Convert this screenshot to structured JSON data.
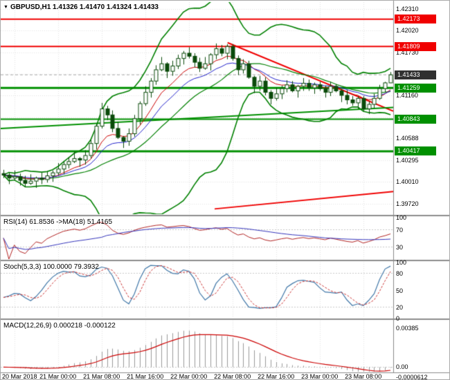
{
  "header": {
    "dropdown_icon": "▼",
    "symbol_line": "GBPUSD,H1 1.41326 1.41470 1.41324 1.41433"
  },
  "colors": {
    "background": "#ffffff",
    "grid": "#e4e4e4",
    "level": "#c8c8c8",
    "separator": "#8c8c8c",
    "axis_line": "#888888",
    "candle": "#0a4a0a",
    "bull": "#ffffff",
    "bollinger": "#008000",
    "badge_dark": "#303030",
    "rsi_line": "#b22222",
    "rsi_ma": "#3333bb",
    "stoch_k": "#4077a8",
    "stoch_d": "#cc3333",
    "macd_hist": "#999999",
    "macd_signal": "#cc0000",
    "bid_line": "#aaaaaa"
  },
  "chart_data": {
    "type": "candlestick",
    "symbol": "GBPUSD",
    "timeframe": "H1",
    "current_bar": {
      "open": 1.41326,
      "high": 1.4147,
      "low": 1.41324,
      "close": 1.41433
    },
    "x_labels": [
      {
        "text": "20 Mar 2018",
        "i": 2
      },
      {
        "text": "21 Mar 00:00",
        "i": 10
      },
      {
        "text": "21 Mar 08:00",
        "i": 18
      },
      {
        "text": "21 Mar 16:00",
        "i": 26
      },
      {
        "text": "22 Mar 00:00",
        "i": 34
      },
      {
        "text": "22 Mar 08:00",
        "i": 42
      },
      {
        "text": "22 Mar 16:00",
        "i": 50
      },
      {
        "text": "23 Mar 00:00",
        "i": 58
      },
      {
        "text": "23 Mar 08:00",
        "i": 66
      }
    ],
    "main": {
      "price_min": 1.3958,
      "price_max": 1.424,
      "axis_ticks": [
        1.4231,
        1.4202,
        1.4173,
        1.41445,
        1.4116,
        1.4087,
        1.40588,
        1.40295,
        1.4001,
        1.3972
      ],
      "hlines": [
        {
          "price": 1.42173,
          "label": "1.42173",
          "color": "#f00000",
          "width": 2
        },
        {
          "price": 1.41809,
          "label": "1.41809",
          "color": "#f00000",
          "width": 2
        },
        {
          "price": 1.41259,
          "label": "1.41259",
          "color": "#009000",
          "width": 3
        },
        {
          "price": 1.40843,
          "label": "1.40843",
          "color": "#009000",
          "width": 2
        },
        {
          "price": 1.40417,
          "label": "1.40417",
          "color": "#009000",
          "width": 3
        }
      ],
      "current_price": {
        "price": 1.41433,
        "label": "1.41433"
      },
      "trendlines": [
        {
          "x1": 0.578,
          "p1": 1.4186,
          "x2": 1.0,
          "p2": 1.4095,
          "color": "#f00000",
          "width": 2
        },
        {
          "x1": 0.0,
          "p1": 1.4072,
          "x2": 1.0,
          "p2": 1.41,
          "color": "#009000",
          "width": 2
        },
        {
          "x1": 0.545,
          "p1": 1.3965,
          "x2": 1.0,
          "p2": 1.3988,
          "color": "#f00000",
          "width": 2
        }
      ],
      "bollinger": {
        "period": 20,
        "deviation": 2.8
      },
      "ma": [
        {
          "period": 8,
          "color": "#cc0000"
        },
        {
          "period": 13,
          "color": "#2222cc"
        }
      ],
      "candles": [
        [
          1.4012,
          1.4017,
          1.4006,
          1.401
        ],
        [
          1.401,
          1.4013,
          1.3998,
          1.4006
        ],
        [
          1.4006,
          1.4016,
          1.4003,
          1.4008
        ],
        [
          1.4008,
          1.4012,
          1.3996,
          1.4003
        ],
        [
          1.4003,
          1.4009,
          1.3994,
          1.3999
        ],
        [
          1.3999,
          1.4011,
          1.3997,
          1.4002
        ],
        [
          1.4002,
          1.4008,
          1.3993,
          1.4006
        ],
        [
          1.4006,
          1.4013,
          1.3998,
          1.4004
        ],
        [
          1.4004,
          1.4014,
          1.4,
          1.4009
        ],
        [
          1.4009,
          1.4016,
          1.4001,
          1.4013
        ],
        [
          1.4013,
          1.4026,
          1.401,
          1.4018
        ],
        [
          1.4018,
          1.4028,
          1.4011,
          1.4024
        ],
        [
          1.4024,
          1.4034,
          1.4019,
          1.4028
        ],
        [
          1.4028,
          1.4041,
          1.4026,
          1.4032
        ],
        [
          1.4032,
          1.4034,
          1.4021,
          1.403
        ],
        [
          1.403,
          1.4043,
          1.4024,
          1.4036
        ],
        [
          1.4036,
          1.4057,
          1.4032,
          1.4052
        ],
        [
          1.4052,
          1.4078,
          1.4044,
          1.4075
        ],
        [
          1.4075,
          1.4106,
          1.4072,
          1.4098
        ],
        [
          1.4098,
          1.4102,
          1.4083,
          1.409
        ],
        [
          1.409,
          1.4096,
          1.4067,
          1.4072
        ],
        [
          1.4072,
          1.4081,
          1.4058,
          1.406
        ],
        [
          1.406,
          1.4062,
          1.4046,
          1.4055
        ],
        [
          1.4055,
          1.4072,
          1.4049,
          1.4065
        ],
        [
          1.4065,
          1.409,
          1.4061,
          1.4085
        ],
        [
          1.4085,
          1.4108,
          1.4077,
          1.4105
        ],
        [
          1.4105,
          1.4128,
          1.4102,
          1.412
        ],
        [
          1.412,
          1.4139,
          1.4113,
          1.4135
        ],
        [
          1.4135,
          1.4156,
          1.413,
          1.415
        ],
        [
          1.415,
          1.4167,
          1.4148,
          1.4158
        ],
        [
          1.4158,
          1.416,
          1.4139,
          1.4148
        ],
        [
          1.4148,
          1.4162,
          1.4142,
          1.4155
        ],
        [
          1.4155,
          1.417,
          1.4151,
          1.4165
        ],
        [
          1.4165,
          1.4175,
          1.4157,
          1.4172
        ],
        [
          1.4172,
          1.418,
          1.4165,
          1.4168
        ],
        [
          1.4168,
          1.4172,
          1.4153,
          1.416
        ],
        [
          1.416,
          1.4166,
          1.4147,
          1.4152
        ],
        [
          1.4152,
          1.4167,
          1.415,
          1.4158
        ],
        [
          1.4158,
          1.4172,
          1.4149,
          1.417
        ],
        [
          1.417,
          1.4185,
          1.4164,
          1.4178
        ],
        [
          1.4178,
          1.4183,
          1.4168,
          1.4172
        ],
        [
          1.4172,
          1.4184,
          1.4164,
          1.4181
        ],
        [
          1.4181,
          1.4184,
          1.4162,
          1.4165
        ],
        [
          1.4165,
          1.4169,
          1.4143,
          1.415
        ],
        [
          1.415,
          1.4164,
          1.4145,
          1.4158
        ],
        [
          1.4158,
          1.4162,
          1.4138,
          1.414
        ],
        [
          1.414,
          1.4142,
          1.4119,
          1.4128
        ],
        [
          1.4128,
          1.4142,
          1.4122,
          1.4135
        ],
        [
          1.4135,
          1.414,
          1.4116,
          1.412
        ],
        [
          1.412,
          1.4123,
          1.4104,
          1.4112
        ],
        [
          1.4112,
          1.4126,
          1.4109,
          1.4118
        ],
        [
          1.4118,
          1.4129,
          1.4111,
          1.4125
        ],
        [
          1.4125,
          1.4136,
          1.412,
          1.413
        ],
        [
          1.413,
          1.4135,
          1.412,
          1.4122
        ],
        [
          1.4122,
          1.413,
          1.4113,
          1.4128
        ],
        [
          1.4128,
          1.4139,
          1.4122,
          1.4132
        ],
        [
          1.4132,
          1.4137,
          1.4122,
          1.4126
        ],
        [
          1.4126,
          1.4133,
          1.4118,
          1.413
        ],
        [
          1.413,
          1.4134,
          1.4122,
          1.4125
        ],
        [
          1.4125,
          1.4129,
          1.4113,
          1.412
        ],
        [
          1.412,
          1.4134,
          1.4115,
          1.4128
        ],
        [
          1.4128,
          1.4131,
          1.412,
          1.4122
        ],
        [
          1.4122,
          1.4124,
          1.4107,
          1.4116
        ],
        [
          1.4116,
          1.4123,
          1.4104,
          1.411
        ],
        [
          1.411,
          1.4115,
          1.4102,
          1.4106
        ],
        [
          1.4106,
          1.4115,
          1.4098,
          1.4112
        ],
        [
          1.4112,
          1.4115,
          1.4095,
          1.4098
        ],
        [
          1.4098,
          1.4108,
          1.4091,
          1.4104
        ],
        [
          1.4104,
          1.4118,
          1.4099,
          1.4112
        ],
        [
          1.4112,
          1.413,
          1.411,
          1.4125
        ],
        [
          1.4125,
          1.4134,
          1.412,
          1.41326
        ],
        [
          1.41326,
          1.4147,
          1.41324,
          1.41433
        ]
      ]
    },
    "rsi": {
      "label": "RSI(14) 61.8536 ->MA(18) 51.4165",
      "period": 14,
      "ma_period": 18,
      "value": 61.8536,
      "ma_value": 51.4165,
      "ticks": [
        100,
        70,
        30
      ],
      "levels": [
        70,
        30
      ]
    },
    "stoch": {
      "label": "Stoch(5,3,3) 100.0000 79.3932",
      "k_period": 5,
      "slowing": 3,
      "d_period": 3,
      "value": 100.0,
      "signal": 79.3932,
      "ticks": [
        100,
        80,
        50,
        20,
        0
      ],
      "levels": [
        80,
        20
      ]
    },
    "macd": {
      "label": "MACD(12,26,9) 0.000218 -0.000122",
      "fast": 12,
      "slow": 26,
      "signal_period": 9,
      "value": 0.000218,
      "signal": -0.000122,
      "scale_min": -0.00045,
      "scale_max": 0.0046,
      "ticks": [
        {
          "v": 0.00385,
          "text": "0.00385"
        },
        {
          "v": 0.0,
          "text": "0.00"
        }
      ],
      "bottom_label": "-0.0000612"
    }
  }
}
